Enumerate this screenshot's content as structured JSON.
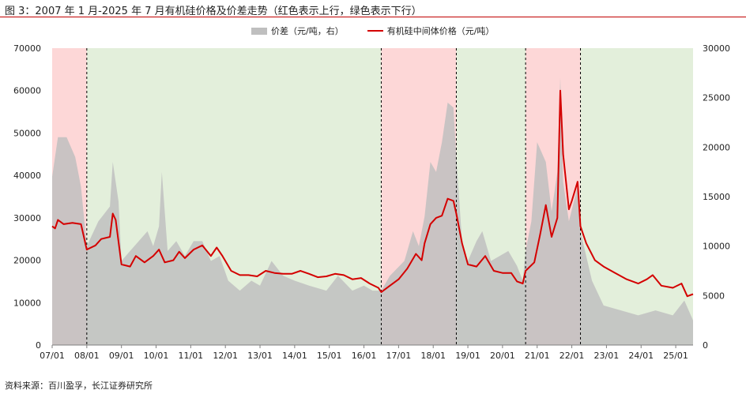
{
  "title": "图 3：2007 年 1 月-2025 年 7 月有机硅价格及价差走势（红色表示上行，绿色表示下行）",
  "source": "资料来源：百川盈孚，长江证券研究所",
  "colors": {
    "up_region": "#fdd7d7",
    "down_region": "#e3efdb",
    "spread_area": "#bfbfbf",
    "price_line": "#d40000",
    "boundary": "#000000"
  },
  "chart_data": {
    "type": "area+line",
    "x_tick_labels": [
      "07/01",
      "08/01",
      "09/01",
      "10/01",
      "11/01",
      "12/01",
      "13/01",
      "14/01",
      "15/01",
      "16/01",
      "17/01",
      "18/01",
      "19/01",
      "20/01",
      "21/01",
      "22/01",
      "23/01",
      "24/01",
      "25/01"
    ],
    "x_range": [
      "2007-01",
      "2025-07"
    ],
    "y_left": {
      "ticks": [
        0,
        10000,
        20000,
        30000,
        40000,
        50000,
        60000,
        70000
      ],
      "ylim": [
        0,
        70000
      ]
    },
    "y_right": {
      "ticks": [
        0,
        5000,
        10000,
        15000,
        20000,
        25000,
        30000
      ],
      "ylim": [
        0,
        30000
      ]
    },
    "legend": [
      "价差（元/吨，右）",
      "有机硅中间体价格（元/吨）"
    ],
    "legend_position": "top-center",
    "regions": [
      {
        "start": "2007-01",
        "end": "2008-01",
        "trend": "up"
      },
      {
        "start": "2008-01",
        "end": "2016-07",
        "trend": "down"
      },
      {
        "start": "2016-07",
        "end": "2018-09",
        "trend": "up"
      },
      {
        "start": "2018-09",
        "end": "2020-09",
        "trend": "down"
      },
      {
        "start": "2020-09",
        "end": "2022-04",
        "trend": "up"
      },
      {
        "start": "2022-04",
        "end": "2025-07",
        "trend": "down"
      }
    ],
    "series": [
      {
        "name": "有机硅中间体价格（元/吨）",
        "axis": "left",
        "type": "line",
        "points": [
          [
            "2007-01",
            28000
          ],
          [
            "2007-02",
            27500
          ],
          [
            "2007-03",
            29500
          ],
          [
            "2007-05",
            28500
          ],
          [
            "2007-08",
            28800
          ],
          [
            "2007-11",
            28500
          ],
          [
            "2008-01",
            22500
          ],
          [
            "2008-04",
            23500
          ],
          [
            "2008-06",
            25000
          ],
          [
            "2008-09",
            25500
          ],
          [
            "2008-10",
            31000
          ],
          [
            "2008-11",
            29500
          ],
          [
            "2009-01",
            19000
          ],
          [
            "2009-04",
            18500
          ],
          [
            "2009-06",
            21000
          ],
          [
            "2009-09",
            19500
          ],
          [
            "2009-12",
            21000
          ],
          [
            "2010-02",
            22500
          ],
          [
            "2010-04",
            19500
          ],
          [
            "2010-07",
            20000
          ],
          [
            "2010-09",
            22000
          ],
          [
            "2010-11",
            20500
          ],
          [
            "2011-02",
            22500
          ],
          [
            "2011-05",
            23500
          ],
          [
            "2011-08",
            21000
          ],
          [
            "2011-10",
            23000
          ],
          [
            "2011-12",
            21000
          ],
          [
            "2012-03",
            17500
          ],
          [
            "2012-06",
            16500
          ],
          [
            "2012-09",
            16500
          ],
          [
            "2012-12",
            16200
          ],
          [
            "2013-03",
            17500
          ],
          [
            "2013-06",
            17000
          ],
          [
            "2013-09",
            16800
          ],
          [
            "2013-12",
            16800
          ],
          [
            "2014-03",
            17500
          ],
          [
            "2014-06",
            16800
          ],
          [
            "2014-09",
            16000
          ],
          [
            "2014-12",
            16200
          ],
          [
            "2015-03",
            16800
          ],
          [
            "2015-06",
            16500
          ],
          [
            "2015-09",
            15500
          ],
          [
            "2015-12",
            15800
          ],
          [
            "2016-03",
            14500
          ],
          [
            "2016-06",
            13500
          ],
          [
            "2016-07",
            12500
          ],
          [
            "2016-10",
            14000
          ],
          [
            "2017-01",
            15500
          ],
          [
            "2017-04",
            18000
          ],
          [
            "2017-07",
            21500
          ],
          [
            "2017-09",
            20000
          ],
          [
            "2017-10",
            24000
          ],
          [
            "2017-12",
            28500
          ],
          [
            "2018-02",
            30000
          ],
          [
            "2018-04",
            30500
          ],
          [
            "2018-06",
            34500
          ],
          [
            "2018-08",
            34000
          ],
          [
            "2018-09",
            31000
          ],
          [
            "2018-11",
            24000
          ],
          [
            "2019-01",
            19000
          ],
          [
            "2019-04",
            18500
          ],
          [
            "2019-07",
            21000
          ],
          [
            "2019-10",
            17500
          ],
          [
            "2020-01",
            17000
          ],
          [
            "2020-04",
            17000
          ],
          [
            "2020-06",
            15000
          ],
          [
            "2020-08",
            14500
          ],
          [
            "2020-09",
            17500
          ],
          [
            "2020-12",
            19500
          ],
          [
            "2021-02",
            26000
          ],
          [
            "2021-04",
            33000
          ],
          [
            "2021-06",
            25500
          ],
          [
            "2021-08",
            30000
          ],
          [
            "2021-09",
            60000
          ],
          [
            "2021-10",
            45000
          ],
          [
            "2021-12",
            32000
          ],
          [
            "2022-01",
            34000
          ],
          [
            "2022-03",
            38500
          ],
          [
            "2022-04",
            28000
          ],
          [
            "2022-06",
            24000
          ],
          [
            "2022-09",
            20000
          ],
          [
            "2022-12",
            18500
          ],
          [
            "2023-04",
            17000
          ],
          [
            "2023-08",
            15500
          ],
          [
            "2023-12",
            14500
          ],
          [
            "2024-03",
            15500
          ],
          [
            "2024-05",
            16500
          ],
          [
            "2024-08",
            14000
          ],
          [
            "2024-12",
            13500
          ],
          [
            "2025-03",
            14500
          ],
          [
            "2025-05",
            11500
          ],
          [
            "2025-07",
            12000
          ]
        ]
      },
      {
        "name": "价差（元/吨，右）",
        "axis": "right",
        "type": "area",
        "points": [
          [
            "2007-01",
            17000
          ],
          [
            "2007-03",
            21000
          ],
          [
            "2007-06",
            21000
          ],
          [
            "2007-09",
            19000
          ],
          [
            "2007-11",
            16000
          ],
          [
            "2008-01",
            10000
          ],
          [
            "2008-05",
            12500
          ],
          [
            "2008-09",
            14000
          ],
          [
            "2008-10",
            18500
          ],
          [
            "2008-12",
            14500
          ],
          [
            "2009-01",
            8500
          ],
          [
            "2009-04",
            9500
          ],
          [
            "2009-07",
            10500
          ],
          [
            "2009-10",
            11500
          ],
          [
            "2009-12",
            10000
          ],
          [
            "2010-02",
            12000
          ],
          [
            "2010-03",
            17500
          ],
          [
            "2010-05",
            9500
          ],
          [
            "2010-08",
            10500
          ],
          [
            "2010-11",
            9000
          ],
          [
            "2011-02",
            10500
          ],
          [
            "2011-05",
            10500
          ],
          [
            "2011-08",
            8500
          ],
          [
            "2011-11",
            9000
          ],
          [
            "2012-02",
            6500
          ],
          [
            "2012-06",
            5500
          ],
          [
            "2012-10",
            6500
          ],
          [
            "2013-01",
            6000
          ],
          [
            "2013-05",
            8500
          ],
          [
            "2013-09",
            7000
          ],
          [
            "2014-01",
            6500
          ],
          [
            "2014-06",
            6000
          ],
          [
            "2014-12",
            5500
          ],
          [
            "2015-04",
            7000
          ],
          [
            "2015-09",
            5500
          ],
          [
            "2016-01",
            6000
          ],
          [
            "2016-04",
            5500
          ],
          [
            "2016-07",
            5500
          ],
          [
            "2016-10",
            7000
          ],
          [
            "2017-03",
            8500
          ],
          [
            "2017-06",
            11500
          ],
          [
            "2017-08",
            10000
          ],
          [
            "2017-10",
            13000
          ],
          [
            "2017-12",
            18500
          ],
          [
            "2018-02",
            17500
          ],
          [
            "2018-04",
            20500
          ],
          [
            "2018-06",
            24500
          ],
          [
            "2018-08",
            24000
          ],
          [
            "2018-09",
            19000
          ],
          [
            "2018-11",
            10500
          ],
          [
            "2019-01",
            8500
          ],
          [
            "2019-04",
            10500
          ],
          [
            "2019-06",
            11500
          ],
          [
            "2019-09",
            8500
          ],
          [
            "2019-12",
            9000
          ],
          [
            "2020-03",
            9500
          ],
          [
            "2020-06",
            8000
          ],
          [
            "2020-08",
            6500
          ],
          [
            "2020-09",
            9500
          ],
          [
            "2020-11",
            12500
          ],
          [
            "2021-01",
            20500
          ],
          [
            "2021-04",
            18500
          ],
          [
            "2021-06",
            13500
          ],
          [
            "2021-08",
            17500
          ],
          [
            "2021-09",
            27000
          ],
          [
            "2021-10",
            16500
          ],
          [
            "2021-12",
            12500
          ],
          [
            "2022-03",
            16000
          ],
          [
            "2022-04",
            11500
          ],
          [
            "2022-08",
            6500
          ],
          [
            "2022-12",
            4000
          ],
          [
            "2023-06",
            3500
          ],
          [
            "2023-12",
            3000
          ],
          [
            "2024-06",
            3500
          ],
          [
            "2024-12",
            3000
          ],
          [
            "2025-04",
            4500
          ],
          [
            "2025-07",
            2500
          ]
        ]
      }
    ]
  }
}
